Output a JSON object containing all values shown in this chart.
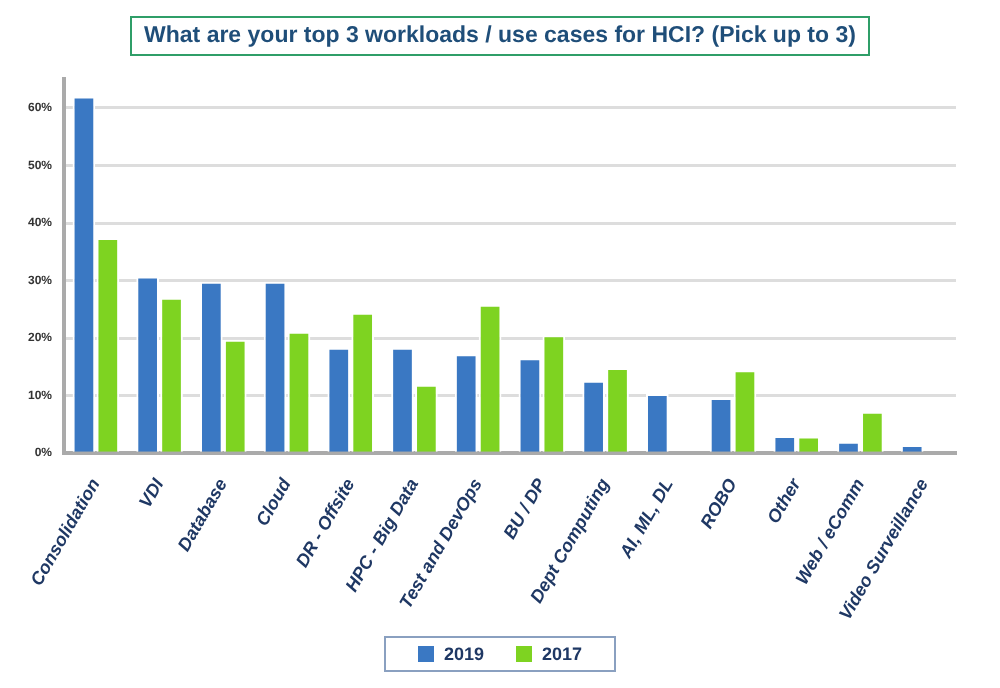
{
  "chart_data": {
    "type": "bar",
    "title": "What are your top 3 workloads / use cases for HCI? (Pick up to 3)",
    "categories": [
      "Consolidation",
      "VDI",
      "Database",
      "Cloud",
      "DR - Offsite",
      "HPC - Big Data",
      "Test and DevOps",
      "BU / DP",
      "Dept Computing",
      "AI, ML, DL",
      "ROBO",
      "Other",
      "Web / eComm",
      "Video Surveillance"
    ],
    "series": [
      {
        "name": "2019",
        "color": "#3a78c3",
        "values": [
          62,
          30.7,
          29.8,
          29.8,
          18.3,
          18.3,
          17.2,
          16.5,
          12.6,
          10.3,
          9.6,
          3.0,
          2.0,
          1.4
        ]
      },
      {
        "name": "2017",
        "color": "#7ed321",
        "values": [
          37.4,
          27,
          19.7,
          21.1,
          24.4,
          11.9,
          25.8,
          20.5,
          14.8,
          null,
          14.4,
          2.9,
          7.2,
          null
        ]
      }
    ],
    "ylim": [
      0,
      65
    ],
    "yticks": [
      {
        "value": 0,
        "label": "0%"
      },
      {
        "value": 10,
        "label": "10%"
      },
      {
        "value": 20,
        "label": "20%"
      },
      {
        "value": 30,
        "label": "30%"
      },
      {
        "value": 40,
        "label": "40%"
      },
      {
        "value": 50,
        "label": "50%"
      },
      {
        "value": 60,
        "label": "60%"
      }
    ],
    "grid": "y",
    "legend": "bottom"
  }
}
